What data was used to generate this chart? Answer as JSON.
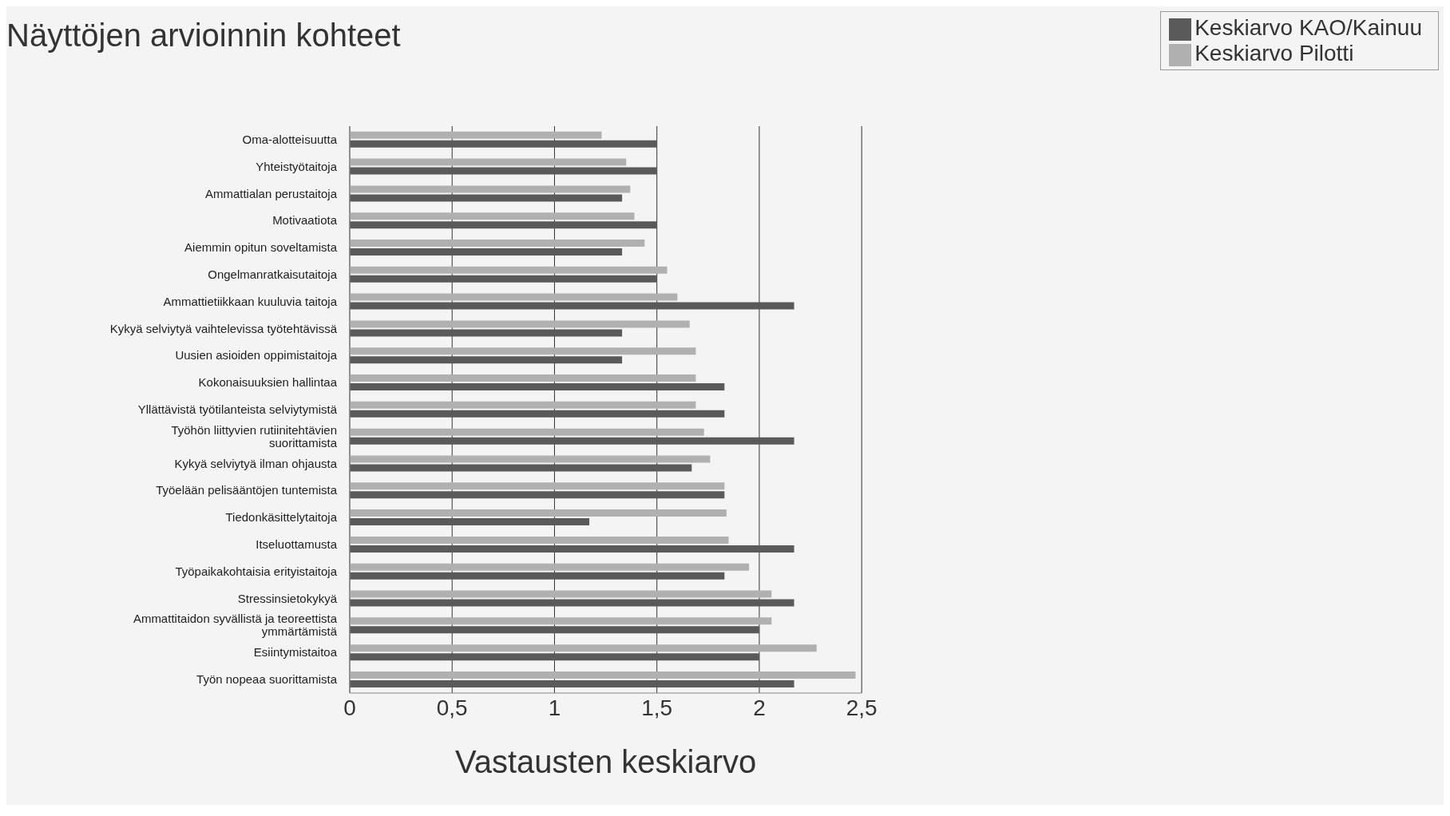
{
  "chart_data": {
    "type": "bar",
    "orientation": "horizontal",
    "title": "Näyttöjen arvioinnin kohteet",
    "xlabel": "Vastausten keskiarvo",
    "categories": [
      "Oma-alotteisuutta",
      "Yhteistyötaitoja",
      "Ammattialan perustaitoja",
      "Motivaatiota",
      "Aiemmin opitun soveltamista",
      "Ongelmanratkaisutaitoja",
      "Ammattietiikkaan kuuluvia taitoja",
      "Kykyä selviytyä vaihtelevissa työtehtävissä",
      "Uusien asioiden oppimistaitoja",
      "Kokonaisuuksien hallintaa",
      "Yllättävistä työtilanteista selviytymistä",
      "Työhön liittyvien rutiinitehtävien suorittamista",
      "Kykyä selviytyä ilman ohjausta",
      "Työelään pelisääntöjen tuntemista",
      "Tiedonkäsittelytaitoja",
      "Itseluottamusta",
      "Työpaikakohtaisia erityistaitoja",
      "Stressinsietokykyä",
      "Ammattitaidon syvällistä ja teoreettista ymmärtämistä",
      "Esiintymistaitoa",
      "Työn nopeaa suorittamista"
    ],
    "series": [
      {
        "name": "Keskiarvo Pilotti",
        "color": "#b0b0b0",
        "values": [
          1.23,
          1.35,
          1.37,
          1.39,
          1.44,
          1.55,
          1.6,
          1.66,
          1.69,
          1.69,
          1.69,
          1.73,
          1.76,
          1.83,
          1.84,
          1.85,
          1.95,
          2.06,
          2.06,
          2.28,
          2.47
        ]
      },
      {
        "name": "Keskiarvo KAO/Kainuu",
        "color": "#5a5a5a",
        "values": [
          1.5,
          1.5,
          1.33,
          1.5,
          1.33,
          1.5,
          2.17,
          1.33,
          1.33,
          1.83,
          1.83,
          2.17,
          1.67,
          1.83,
          1.17,
          2.17,
          1.83,
          2.17,
          2.0,
          2.0,
          2.17
        ]
      }
    ],
    "xlim": [
      0,
      2.5
    ],
    "xticks": [
      0,
      {
        "value": 0.5,
        "label": "0,5"
      },
      1,
      {
        "value": 1.5,
        "label": "1,5"
      },
      2,
      {
        "value": 2.5,
        "label": "2,5"
      }
    ],
    "grid": "x",
    "legend": "top right"
  }
}
